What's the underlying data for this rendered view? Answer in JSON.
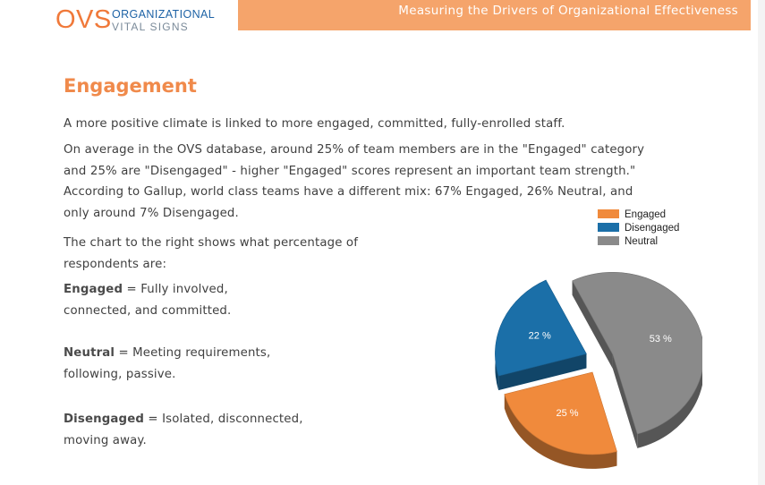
{
  "header": {
    "logo_abbr": "OVS",
    "logo_line1": "ORGANIZATIONAL",
    "logo_line2": "VITAL SIGNS",
    "title": "Measuring the Drivers of Organizational Effectiveness"
  },
  "page": {
    "heading": "Engagement",
    "para1": "A more positive climate is linked to more engaged, committed, fully-enrolled staff.",
    "para2": "On average in the OVS database, around 25% of team members are in the \"Engaged\" category and 25% are \"Disengaged\" - higher \"Engaged\" scores represent an important team strength.\" According to Gallup, world class teams have a different mix: 67% Engaged, 26% Neutral, and only around 7% Disengaged.",
    "para3": "The chart to the right shows what percentage of respondents are:",
    "definitions": [
      {
        "term": "Engaged",
        "text": " = Fully involved, connected, and committed."
      },
      {
        "term": "Neutral",
        "text": " = Meeting requirements, following, passive."
      },
      {
        "term": "Disengaged",
        "text": " = Isolated, disconnected, moving away."
      }
    ]
  },
  "colors": {
    "accent_orange": "#f08a4b",
    "logo_blue": "#1e63a6",
    "engaged": "#f08a3c",
    "disengaged": "#1b6fa8",
    "neutral": "#8a8a8a"
  },
  "chart_data": {
    "type": "pie",
    "style": "3d-exploded",
    "legend_position": "top-right",
    "slices": [
      {
        "name": "Engaged",
        "value": 25,
        "label": "25 %",
        "color": "#f08a3c"
      },
      {
        "name": "Disengaged",
        "value": 22,
        "label": "22 %",
        "color": "#1b6fa8"
      },
      {
        "name": "Neutral",
        "value": 53,
        "label": "53 %",
        "color": "#8a8a8a"
      }
    ]
  }
}
